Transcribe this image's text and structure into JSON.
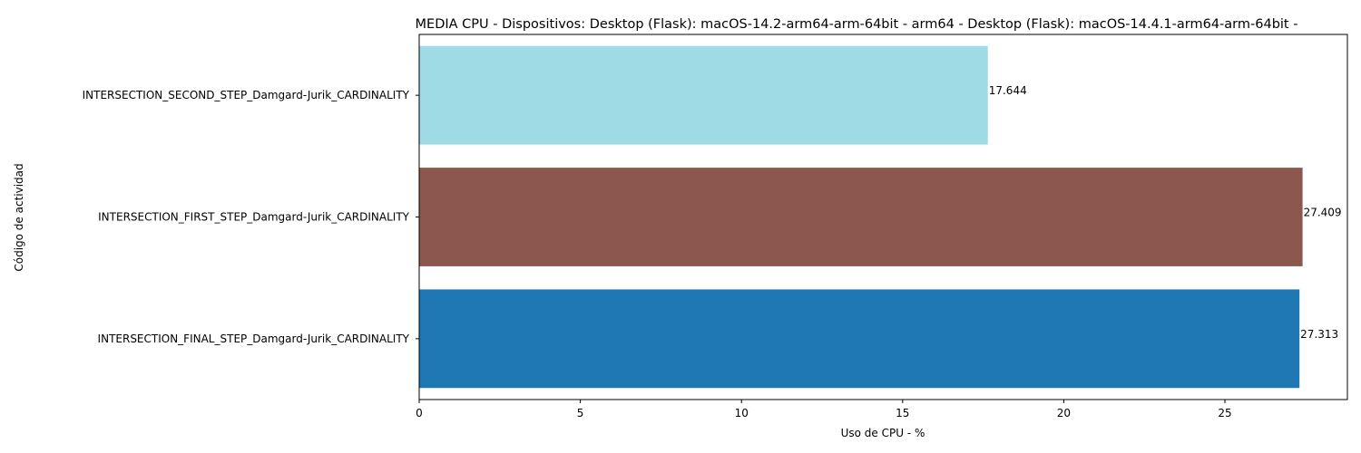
{
  "chart_data": {
    "type": "bar",
    "orientation": "horizontal",
    "title": "MEDIA CPU - Dispositivos: Desktop (Flask): macOS-14.2-arm64-arm-64bit - arm64 - Desktop (Flask): macOS-14.4.1-arm64-arm-64bit -",
    "xlabel": "Uso de CPU - %",
    "ylabel": "Código de actividad",
    "xlim": [
      0,
      28.8
    ],
    "xticks": [
      0,
      5,
      10,
      15,
      20,
      25
    ],
    "grid": false,
    "categories": [
      "INTERSECTION_SECOND_STEP_Damgard-Jurik_CARDINALITY",
      "INTERSECTION_FIRST_STEP_Damgard-Jurik_CARDINALITY",
      "INTERSECTION_FINAL_STEP_Damgard-Jurik_CARDINALITY"
    ],
    "values": [
      17.644,
      27.409,
      27.313
    ],
    "data_labels": [
      "17.644",
      "27.409",
      "27.313"
    ],
    "colors": [
      "#9fdbe5",
      "#8c574c",
      "#1f77b4"
    ]
  }
}
